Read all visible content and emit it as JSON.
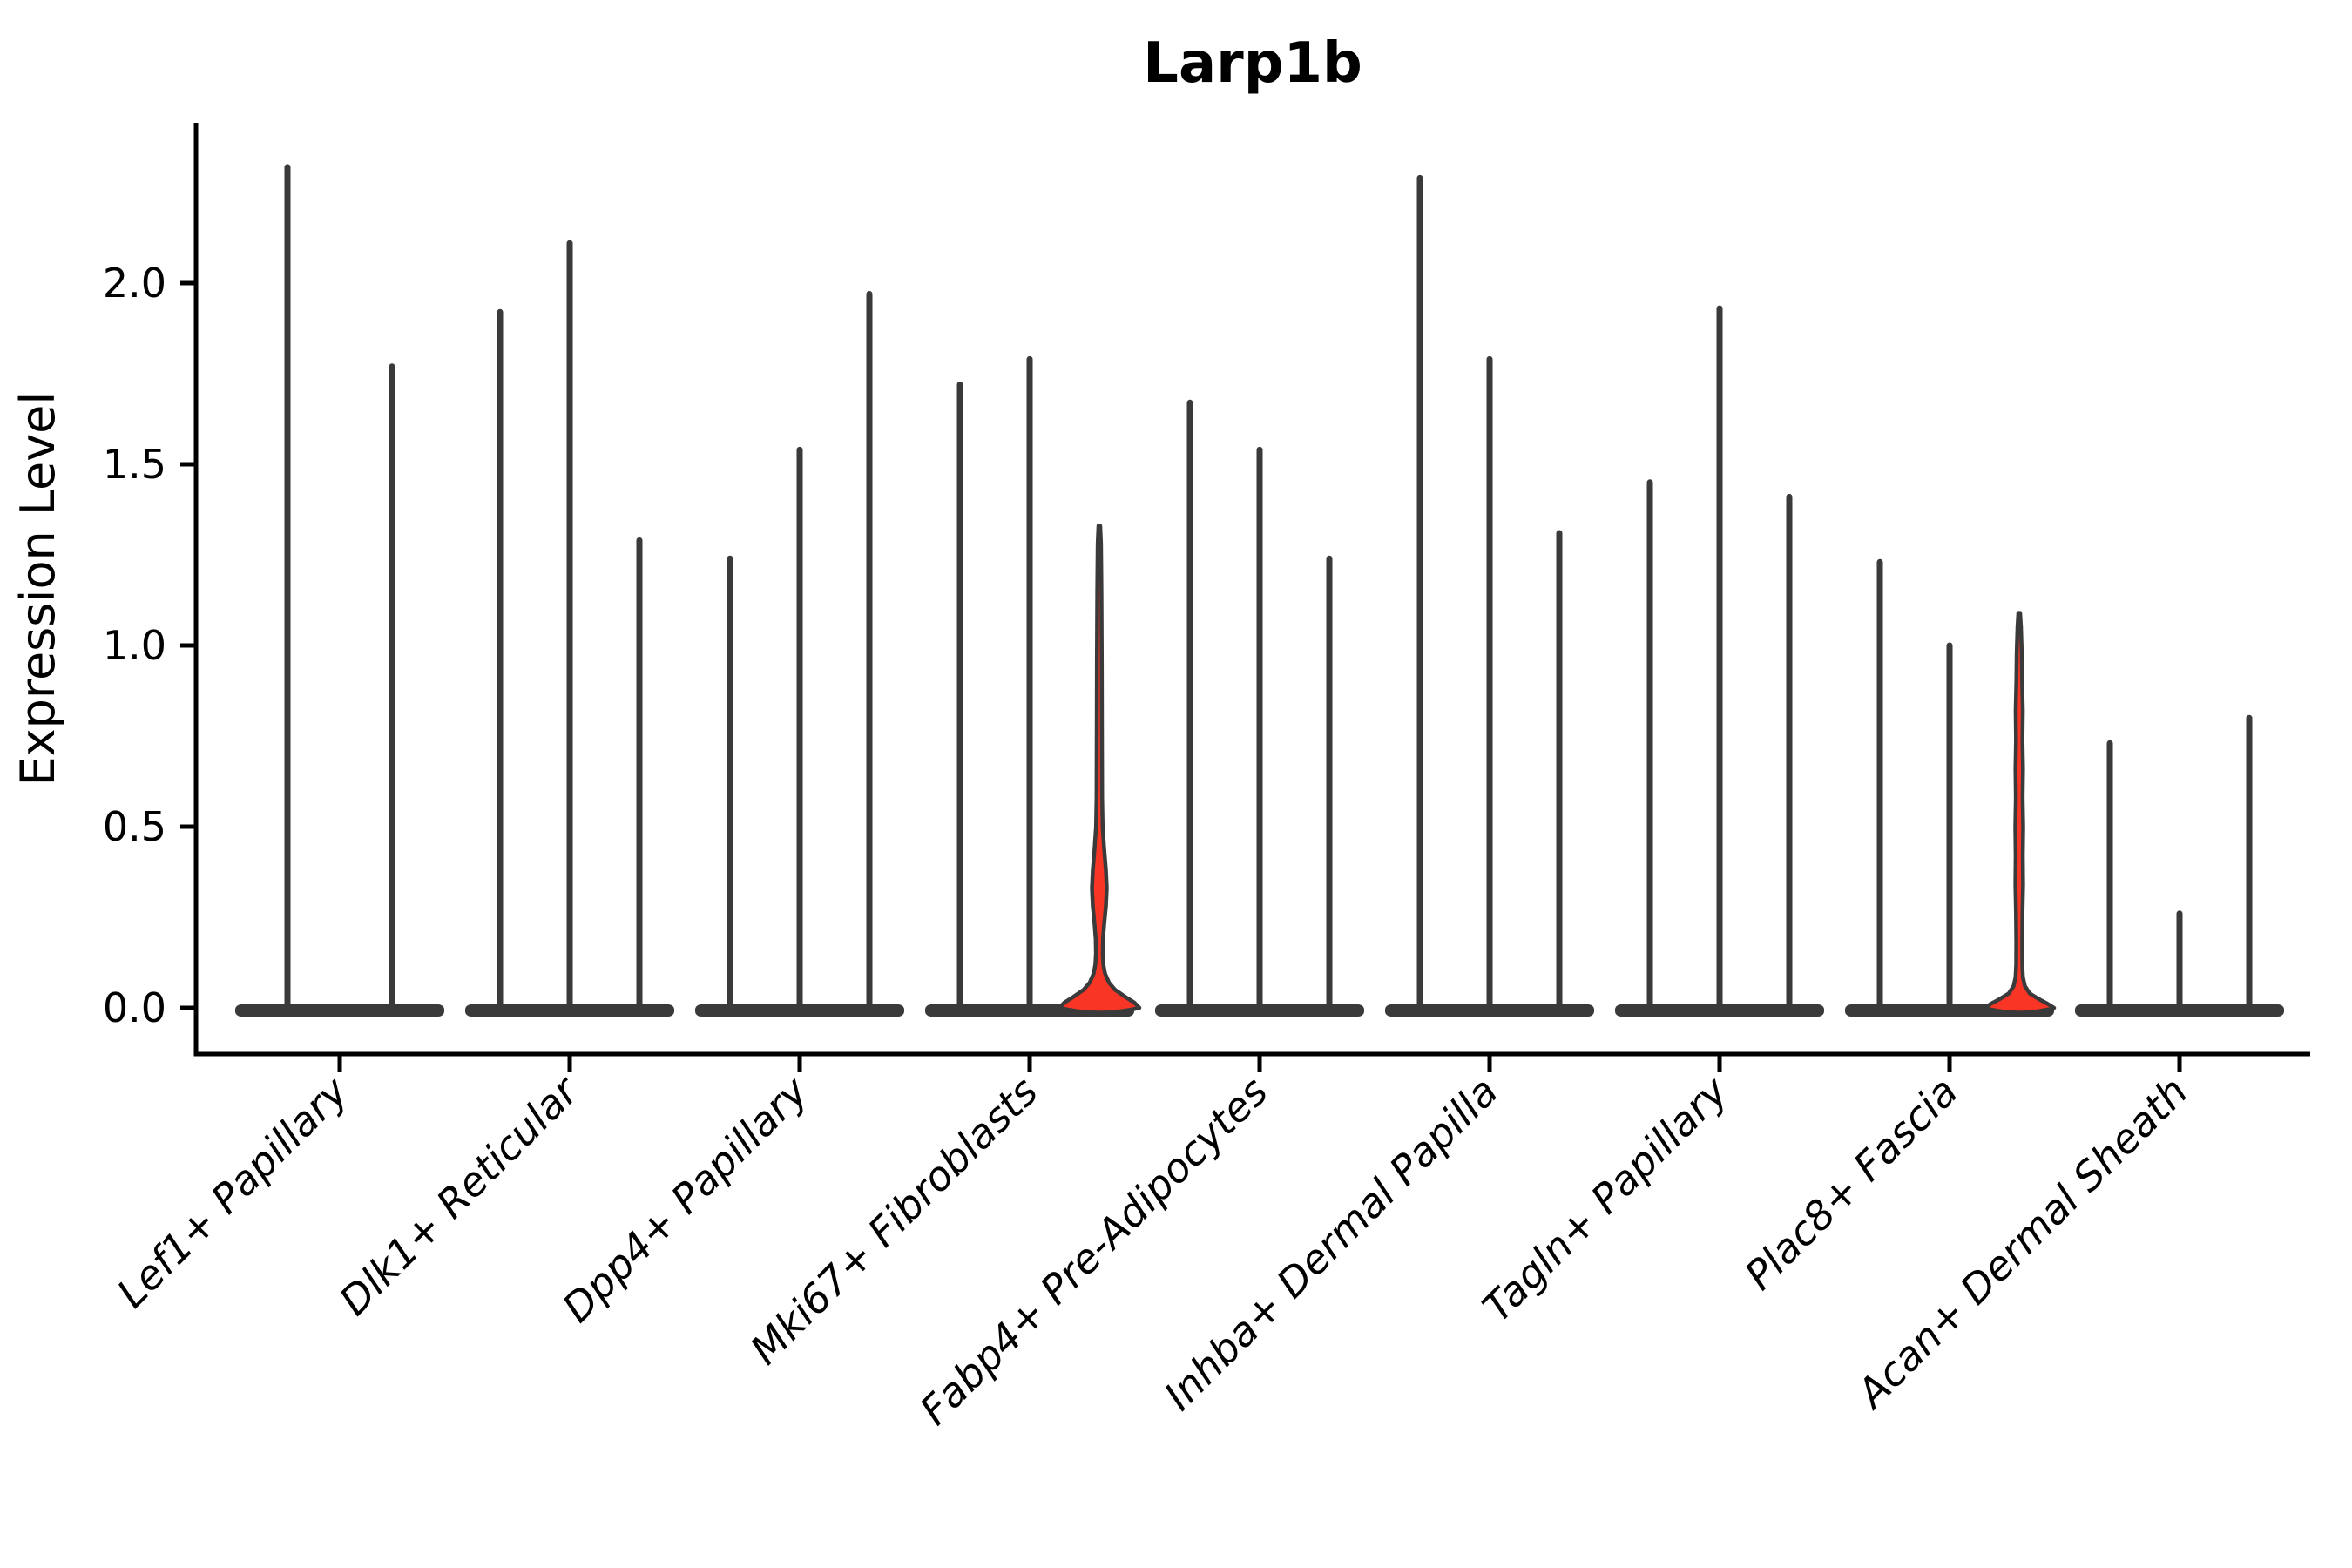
{
  "title": "Larp1b",
  "colors": {
    "violin_dark": "#3a3a3a",
    "highlight_red": "#f93526",
    "axis": "#000000",
    "background": "#ffffff"
  },
  "y_axis": {
    "label": "Expression Level",
    "tick_labels": [
      "0.0",
      "0.5",
      "1.0",
      "1.5",
      "2.0"
    ]
  },
  "chart_data": {
    "type": "violin",
    "title": "Larp1b",
    "xlabel": "",
    "ylabel": "Expression Level",
    "ylim": [
      -0.12,
      2.44
    ],
    "yticks": [
      0.0,
      0.5,
      1.0,
      1.5,
      2.0
    ],
    "grid": false,
    "legend_position": "none",
    "categories": [
      "Lef1+ Papillary",
      "Dlk1+ Reticular",
      "Dpp4+ Papillary",
      "Mki67+ Fibroblasts",
      "Fabp4+ Pre-Adipocytes",
      "Inhba+ Dermal Papilla",
      "Tagln+ Papillary",
      "Plac8+ Fascia",
      "Acan+ Dermal Sheath"
    ],
    "groups": [
      {
        "label": "Lef1+ Papillary",
        "spikes": [
          {
            "max": 2.32
          },
          {
            "max": 1.77
          }
        ]
      },
      {
        "label": "Dlk1+ Reticular",
        "spikes": [
          {
            "max": 1.92
          },
          {
            "max": 2.11
          },
          {
            "max": 1.29
          }
        ]
      },
      {
        "label": "Dpp4+ Papillary",
        "spikes": [
          {
            "max": 1.24
          },
          {
            "max": 1.54
          },
          {
            "max": 1.97
          }
        ]
      },
      {
        "label": "Mki67+ Fibroblasts",
        "spikes": [
          {
            "max": 1.72
          },
          {
            "max": 1.79
          },
          {
            "max": 1.33,
            "highlight": true,
            "profile": [
              [
                1.33,
                1.0
              ],
              [
                1.28,
                1.9
              ],
              [
                1.15,
                2.4
              ],
              [
                0.95,
                2.8
              ],
              [
                0.75,
                3.0
              ],
              [
                0.58,
                3.2
              ],
              [
                0.5,
                3.8
              ],
              [
                0.44,
                5.5
              ],
              [
                0.38,
                7.5
              ],
              [
                0.33,
                8.5
              ],
              [
                0.28,
                7.5
              ],
              [
                0.23,
                5.5
              ],
              [
                0.19,
                4.2
              ],
              [
                0.15,
                3.9
              ],
              [
                0.12,
                4.6
              ],
              [
                0.095,
                6.5
              ],
              [
                0.07,
                11
              ],
              [
                0.05,
                18
              ],
              [
                0.03,
                30
              ],
              [
                0.015,
                40
              ],
              [
                0,
                46
              ]
            ]
          }
        ]
      },
      {
        "label": "Fabp4+ Pre-Adipocytes",
        "spikes": [
          {
            "max": 1.67
          },
          {
            "max": 1.54
          },
          {
            "max": 1.24
          }
        ]
      },
      {
        "label": "Inhba+ Dermal Papilla",
        "spikes": [
          {
            "max": 2.29
          },
          {
            "max": 1.79
          },
          {
            "max": 1.31
          }
        ]
      },
      {
        "label": "Tagln+ Papillary",
        "spikes": [
          {
            "max": 1.45
          },
          {
            "max": 1.93
          },
          {
            "max": 1.41
          }
        ]
      },
      {
        "label": "Plac8+ Fascia",
        "spikes": [
          {
            "max": 1.23
          },
          {
            "max": 1.0
          },
          {
            "max": 1.09,
            "highlight": true,
            "profile": [
              [
                1.09,
                1.0
              ],
              [
                1.05,
                2.0
              ],
              [
                0.98,
                2.9
              ],
              [
                0.9,
                3.3
              ],
              [
                0.82,
                4.1
              ],
              [
                0.74,
                3.7
              ],
              [
                0.66,
                4.3
              ],
              [
                0.58,
                3.9
              ],
              [
                0.5,
                4.5
              ],
              [
                0.42,
                4.1
              ],
              [
                0.34,
                4.4
              ],
              [
                0.26,
                3.7
              ],
              [
                0.18,
                3.4
              ],
              [
                0.12,
                3.5
              ],
              [
                0.085,
                4.2
              ],
              [
                0.06,
                6.5
              ],
              [
                0.04,
                12
              ],
              [
                0.025,
                22
              ],
              [
                0.012,
                32
              ],
              [
                0,
                40
              ]
            ]
          }
        ]
      },
      {
        "label": "Acan+ Dermal Sheath",
        "spikes": [
          {
            "max": 0.73
          },
          {
            "max": 0.26
          },
          {
            "max": 0.8
          }
        ]
      }
    ]
  }
}
